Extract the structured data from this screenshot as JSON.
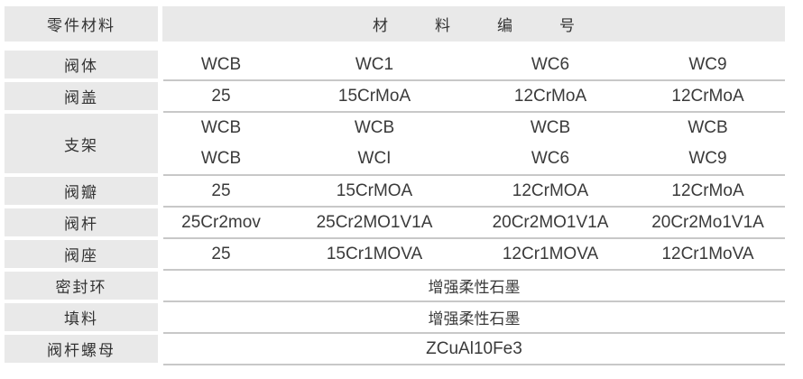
{
  "header": {
    "label_col": "零件材料",
    "material_title": [
      "材",
      "料",
      "编",
      "号"
    ]
  },
  "rows": [
    {
      "part": "阀体",
      "values": [
        "WCB",
        "WC1",
        "WC6",
        "WC9"
      ]
    },
    {
      "part": "阀盖",
      "values": [
        "25",
        "15CrMoA",
        "12CrMoA",
        "12CrMoA"
      ]
    },
    {
      "part": "支架",
      "values": [
        "WCB",
        "WCB",
        "WCB",
        "WCB"
      ],
      "values2": [
        "WCB",
        "WCI",
        "WC6",
        "WC9"
      ]
    },
    {
      "part": "阀瓣",
      "values": [
        "25",
        "15CrMOA",
        "12CrMOA",
        "12CrMoA"
      ]
    },
    {
      "part": "阀杆",
      "values": [
        "25Cr2mov",
        "25Cr2MO1V1A",
        "20Cr2MO1V1A",
        "20Cr2Mo1V1A"
      ]
    },
    {
      "part": "阀座",
      "values": [
        "25",
        "15Cr1MOVA",
        "12Cr1MOVA",
        "12Cr1MoVA"
      ]
    },
    {
      "part": "密封环",
      "full": "增强柔性石墨"
    },
    {
      "part": "填料",
      "full": "增强柔性石墨"
    },
    {
      "part": "阀杆螺母",
      "full": "ZCuAl10Fe3"
    }
  ]
}
